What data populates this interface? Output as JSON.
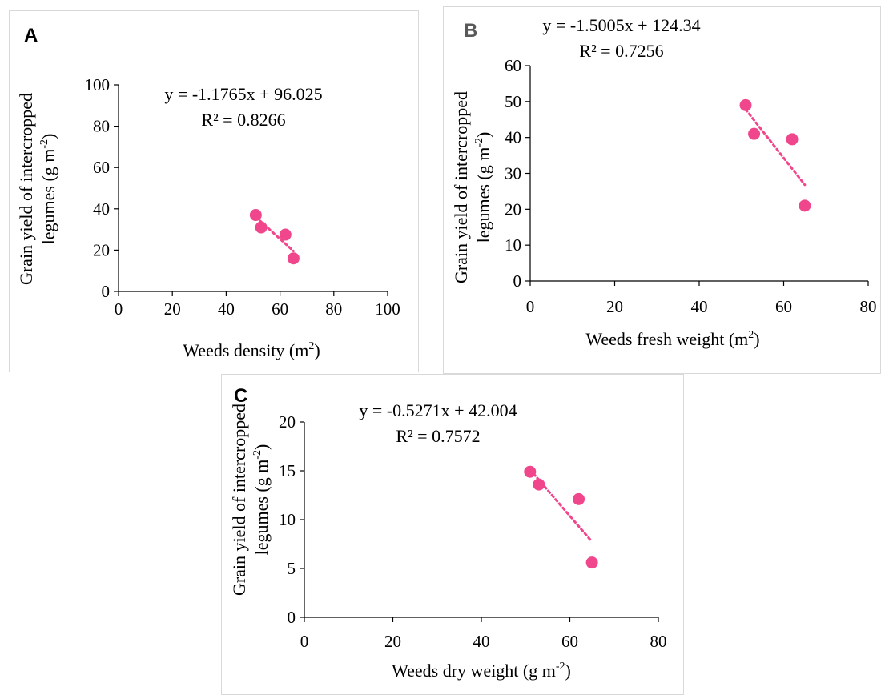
{
  "colors": {
    "point": "#f0468c",
    "trendline": "#f0468c",
    "axis": "#000000",
    "panel_border": "#d9d9d9"
  },
  "chart_data": [
    {
      "panel_label": "A",
      "type": "scatter",
      "points": [
        {
          "x": 51,
          "y": 37
        },
        {
          "x": 53,
          "y": 31
        },
        {
          "x": 62,
          "y": 27.5
        },
        {
          "x": 65,
          "y": 16
        }
      ],
      "trendline": {
        "slope": -1.1765,
        "intercept": 96.025,
        "style": "dotted"
      },
      "equation": "y = -1.1765x + 96.025",
      "r2": "R² = 0.8266",
      "xlim": [
        0,
        100
      ],
      "xticks": [
        "0",
        "20",
        "40",
        "60",
        "80",
        "100"
      ],
      "ylim": [
        0,
        100
      ],
      "yticks": [
        "0",
        "20",
        "40",
        "60",
        "80",
        "100"
      ],
      "xlabel_main": "Weeds density (m",
      "xlabel_sup": "2",
      "xlabel_end": ")",
      "ylabel_line1": "Grain yield of intercropped",
      "ylabel_line2_main": "legumes (g m",
      "ylabel_line2_sup": "-2",
      "ylabel_line2_end": ")",
      "grid": false
    },
    {
      "panel_label": "B",
      "type": "scatter",
      "points": [
        {
          "x": 51,
          "y": 49
        },
        {
          "x": 53,
          "y": 41
        },
        {
          "x": 62,
          "y": 39.5
        },
        {
          "x": 65,
          "y": 21
        }
      ],
      "trendline": {
        "slope": -1.5005,
        "intercept": 124.34,
        "style": "dotted"
      },
      "equation": "y = -1.5005x + 124.34",
      "r2": "R² = 0.7256",
      "xlim": [
        0,
        80
      ],
      "xticks": [
        "0",
        "20",
        "40",
        "60",
        "80"
      ],
      "ylim": [
        0,
        60
      ],
      "yticks": [
        "0",
        "10",
        "20",
        "30",
        "40",
        "50",
        "60"
      ],
      "xlabel_main": "Weeds fresh weight (m",
      "xlabel_sup": "2",
      "xlabel_end": ")",
      "ylabel_line1": "Grain yield of intercropped",
      "ylabel_line2_main": "legumes (g m",
      "ylabel_line2_sup": "-2",
      "ylabel_line2_end": ")",
      "grid": false
    },
    {
      "panel_label": "C",
      "type": "scatter",
      "points": [
        {
          "x": 51,
          "y": 14.9
        },
        {
          "x": 53,
          "y": 13.6
        },
        {
          "x": 62,
          "y": 12.1
        },
        {
          "x": 65,
          "y": 5.6
        }
      ],
      "trendline": {
        "slope": -0.5271,
        "intercept": 42.004,
        "style": "dotted"
      },
      "equation": "y = -0.5271x + 42.004",
      "r2": "R² = 0.7572",
      "xlim": [
        0,
        80
      ],
      "xticks": [
        "0",
        "20",
        "40",
        "60",
        "80"
      ],
      "ylim": [
        0,
        20
      ],
      "yticks": [
        "0",
        "5",
        "10",
        "15",
        "20"
      ],
      "xlabel_main": "Weeds dry weight (g m",
      "xlabel_sup": "-2",
      "xlabel_end": ")",
      "ylabel_line1": "Grain yield of intercropped",
      "ylabel_line2_main": "legumes (g m",
      "ylabel_line2_sup": "-2",
      "ylabel_line2_end": ")",
      "grid": false
    }
  ]
}
